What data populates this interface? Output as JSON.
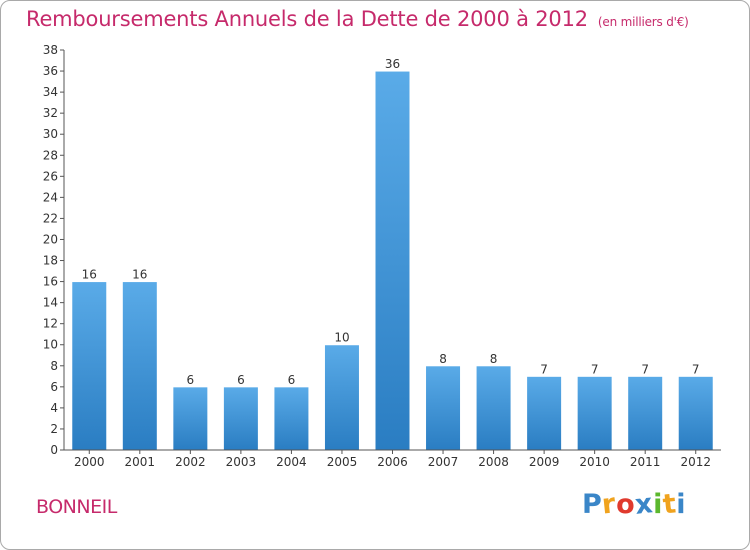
{
  "chart_data": {
    "type": "bar",
    "title": "Remboursements Annuels de la Dette de 2000 à 2012",
    "subtitle": "(en milliers d'€)",
    "categories": [
      "2000",
      "2001",
      "2002",
      "2003",
      "2004",
      "2005",
      "2006",
      "2007",
      "2008",
      "2009",
      "2010",
      "2011",
      "2012"
    ],
    "values": [
      16,
      16,
      6,
      6,
      6,
      10,
      36,
      8,
      8,
      7,
      7,
      7,
      7
    ],
    "ylim": [
      0,
      38
    ],
    "ytick_step": 2,
    "bar_color_top": "#5aabe8",
    "bar_color_bottom": "#2a7dc2",
    "grid": false
  },
  "town": "BONNEIL",
  "logo": {
    "letters": [
      "P",
      "r",
      "o",
      "x",
      "i",
      "t",
      "i"
    ],
    "colors": [
      "#3a86c8",
      "#f0a31e",
      "#e03a2e",
      "#3a86c8",
      "#5cb82e",
      "#f0a31e",
      "#3a86c8"
    ]
  },
  "colors": {
    "accent": "#c62a6b"
  }
}
